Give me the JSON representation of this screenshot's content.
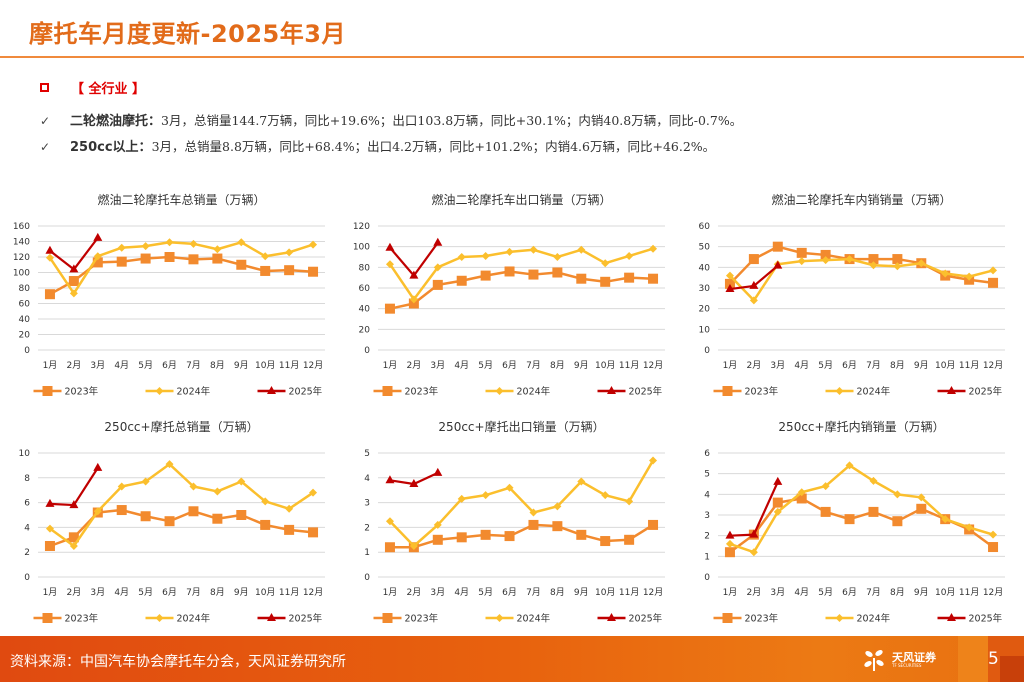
{
  "header": {
    "title": "摩托车月度更新-2025年3月"
  },
  "section": {
    "label": "【 全行业 】",
    "icon": "square-bullet-icon"
  },
  "bullets": [
    {
      "icon": "checkmark-icon",
      "lead": "二轮燃油摩托：",
      "text": "3月，总销量144.7万辆，同比+19.6%；出口103.8万辆，同比+30.1%；内销40.8万辆，同比-0.7%。"
    },
    {
      "icon": "checkmark-icon",
      "lead": "250cc以上：",
      "text": "3月，总销量8.8万辆，同比+68.4%；出口4.2万辆，同比+101.2%；内销4.6万辆，同比+46.2%。"
    }
  ],
  "footer": {
    "source": "资料来源：中国汽车协会摩托车分会，天风证券研究所",
    "logo_text": "天风证券",
    "logo_sub": "TF SECURITIES",
    "page_number": "5"
  },
  "colors": {
    "s2023": "#f28a2e",
    "s2024": "#fbbf2d",
    "s2025": "#c00000",
    "grid": "#d9d9d9",
    "title": "#e26b1a"
  },
  "chart_data": [
    {
      "type": "line",
      "title": "燃油二轮摩托车总销量（万辆）",
      "categories": [
        "1月",
        "2月",
        "3月",
        "4月",
        "5月",
        "6月",
        "7月",
        "8月",
        "9月",
        "10月",
        "11月",
        "12月"
      ],
      "ylim": [
        0,
        160
      ],
      "yticks": [
        0,
        20,
        40,
        60,
        80,
        100,
        120,
        140,
        160
      ],
      "grid": true,
      "legend": "bottom",
      "series": [
        {
          "name": "2023年",
          "marker": "square",
          "values": [
            72,
            89,
            113,
            114,
            118,
            120,
            117,
            118,
            110,
            102,
            103,
            101
          ]
        },
        {
          "name": "2024年",
          "marker": "diamond",
          "values": [
            119,
            73,
            121,
            132,
            134,
            139,
            137,
            130,
            139,
            121,
            126,
            136
          ]
        },
        {
          "name": "2025年",
          "marker": "triangle",
          "values": [
            128,
            104,
            144.7
          ]
        }
      ]
    },
    {
      "type": "line",
      "title": "燃油二轮摩托车出口销量（万辆）",
      "categories": [
        "1月",
        "2月",
        "3月",
        "4月",
        "5月",
        "6月",
        "7月",
        "8月",
        "9月",
        "10月",
        "11月",
        "12月"
      ],
      "ylim": [
        0,
        120
      ],
      "yticks": [
        0,
        20,
        40,
        60,
        80,
        100,
        120
      ],
      "grid": true,
      "legend": "bottom",
      "series": [
        {
          "name": "2023年",
          "marker": "square",
          "values": [
            40,
            45,
            63,
            67,
            72,
            76,
            73,
            75,
            69,
            66,
            70,
            69
          ]
        },
        {
          "name": "2024年",
          "marker": "diamond",
          "values": [
            83,
            49,
            80,
            90,
            91,
            95,
            97,
            90,
            97,
            84,
            91,
            98
          ]
        },
        {
          "name": "2025年",
          "marker": "triangle",
          "values": [
            99,
            72,
            103.8
          ]
        }
      ]
    },
    {
      "type": "line",
      "title": "燃油二轮摩托车内销销量（万辆）",
      "categories": [
        "1月",
        "2月",
        "3月",
        "4月",
        "5月",
        "6月",
        "7月",
        "8月",
        "9月",
        "10月",
        "11月",
        "12月"
      ],
      "ylim": [
        0,
        60
      ],
      "yticks": [
        0,
        10,
        20,
        30,
        40,
        50,
        60
      ],
      "grid": true,
      "legend": "bottom",
      "series": [
        {
          "name": "2023年",
          "marker": "square",
          "values": [
            32,
            44,
            50,
            47,
            46,
            44,
            44,
            44,
            42,
            36,
            34,
            32.5
          ]
        },
        {
          "name": "2024年",
          "marker": "diamond",
          "values": [
            36,
            24,
            41.5,
            43,
            43.5,
            44,
            41,
            40.5,
            42,
            37,
            35.5,
            38.5
          ]
        },
        {
          "name": "2025年",
          "marker": "triangle",
          "values": [
            29.5,
            31,
            40.8
          ]
        }
      ]
    },
    {
      "type": "line",
      "title": "250cc+摩托总销量（万辆）",
      "categories": [
        "1月",
        "2月",
        "3月",
        "4月",
        "5月",
        "6月",
        "7月",
        "8月",
        "9月",
        "10月",
        "11月",
        "12月"
      ],
      "ylim": [
        0,
        10
      ],
      "yticks": [
        0,
        2,
        4,
        6,
        8,
        10
      ],
      "grid": true,
      "legend": "bottom",
      "series": [
        {
          "name": "2023年",
          "marker": "square",
          "values": [
            2.5,
            3.2,
            5.2,
            5.4,
            4.9,
            4.5,
            5.3,
            4.7,
            5.0,
            4.2,
            3.8,
            3.6
          ]
        },
        {
          "name": "2024年",
          "marker": "diamond",
          "values": [
            3.9,
            2.5,
            5.3,
            7.3,
            7.7,
            9.1,
            7.3,
            6.9,
            7.7,
            6.1,
            5.5,
            6.8
          ]
        },
        {
          "name": "2025年",
          "marker": "triangle",
          "values": [
            5.9,
            5.8,
            8.8
          ]
        }
      ]
    },
    {
      "type": "line",
      "title": "250cc+摩托出口销量（万辆）",
      "categories": [
        "1月",
        "2月",
        "3月",
        "4月",
        "5月",
        "6月",
        "7月",
        "8月",
        "9月",
        "10月",
        "11月",
        "12月"
      ],
      "ylim": [
        0,
        5
      ],
      "yticks": [
        0,
        1,
        2,
        3,
        4,
        5
      ],
      "grid": true,
      "legend": "bottom",
      "series": [
        {
          "name": "2023年",
          "marker": "square",
          "values": [
            1.2,
            1.2,
            1.5,
            1.6,
            1.7,
            1.65,
            2.1,
            2.05,
            1.7,
            1.45,
            1.5,
            2.1
          ]
        },
        {
          "name": "2024年",
          "marker": "diamond",
          "values": [
            2.25,
            1.25,
            2.1,
            3.15,
            3.3,
            3.6,
            2.6,
            2.85,
            3.85,
            3.3,
            3.05,
            4.7
          ]
        },
        {
          "name": "2025年",
          "marker": "triangle",
          "values": [
            3.9,
            3.75,
            4.2
          ]
        }
      ]
    },
    {
      "type": "line",
      "title": "250cc+摩托内销销量（万辆）",
      "categories": [
        "1月",
        "2月",
        "3月",
        "4月",
        "5月",
        "6月",
        "7月",
        "8月",
        "9月",
        "10月",
        "11月",
        "12月"
      ],
      "ylim": [
        0,
        6
      ],
      "yticks": [
        0,
        1,
        2,
        3,
        4,
        5,
        6
      ],
      "grid": true,
      "legend": "bottom",
      "series": [
        {
          "name": "2023年",
          "marker": "square",
          "values": [
            1.2,
            2.05,
            3.6,
            3.8,
            3.15,
            2.8,
            3.15,
            2.7,
            3.3,
            2.8,
            2.3,
            1.45
          ]
        },
        {
          "name": "2024年",
          "marker": "diamond",
          "values": [
            1.6,
            1.2,
            3.15,
            4.1,
            4.4,
            5.4,
            4.65,
            4.0,
            3.85,
            2.8,
            2.4,
            2.05
          ]
        },
        {
          "name": "2025年",
          "marker": "triangle",
          "values": [
            2.0,
            2.05,
            4.6
          ]
        }
      ]
    }
  ]
}
